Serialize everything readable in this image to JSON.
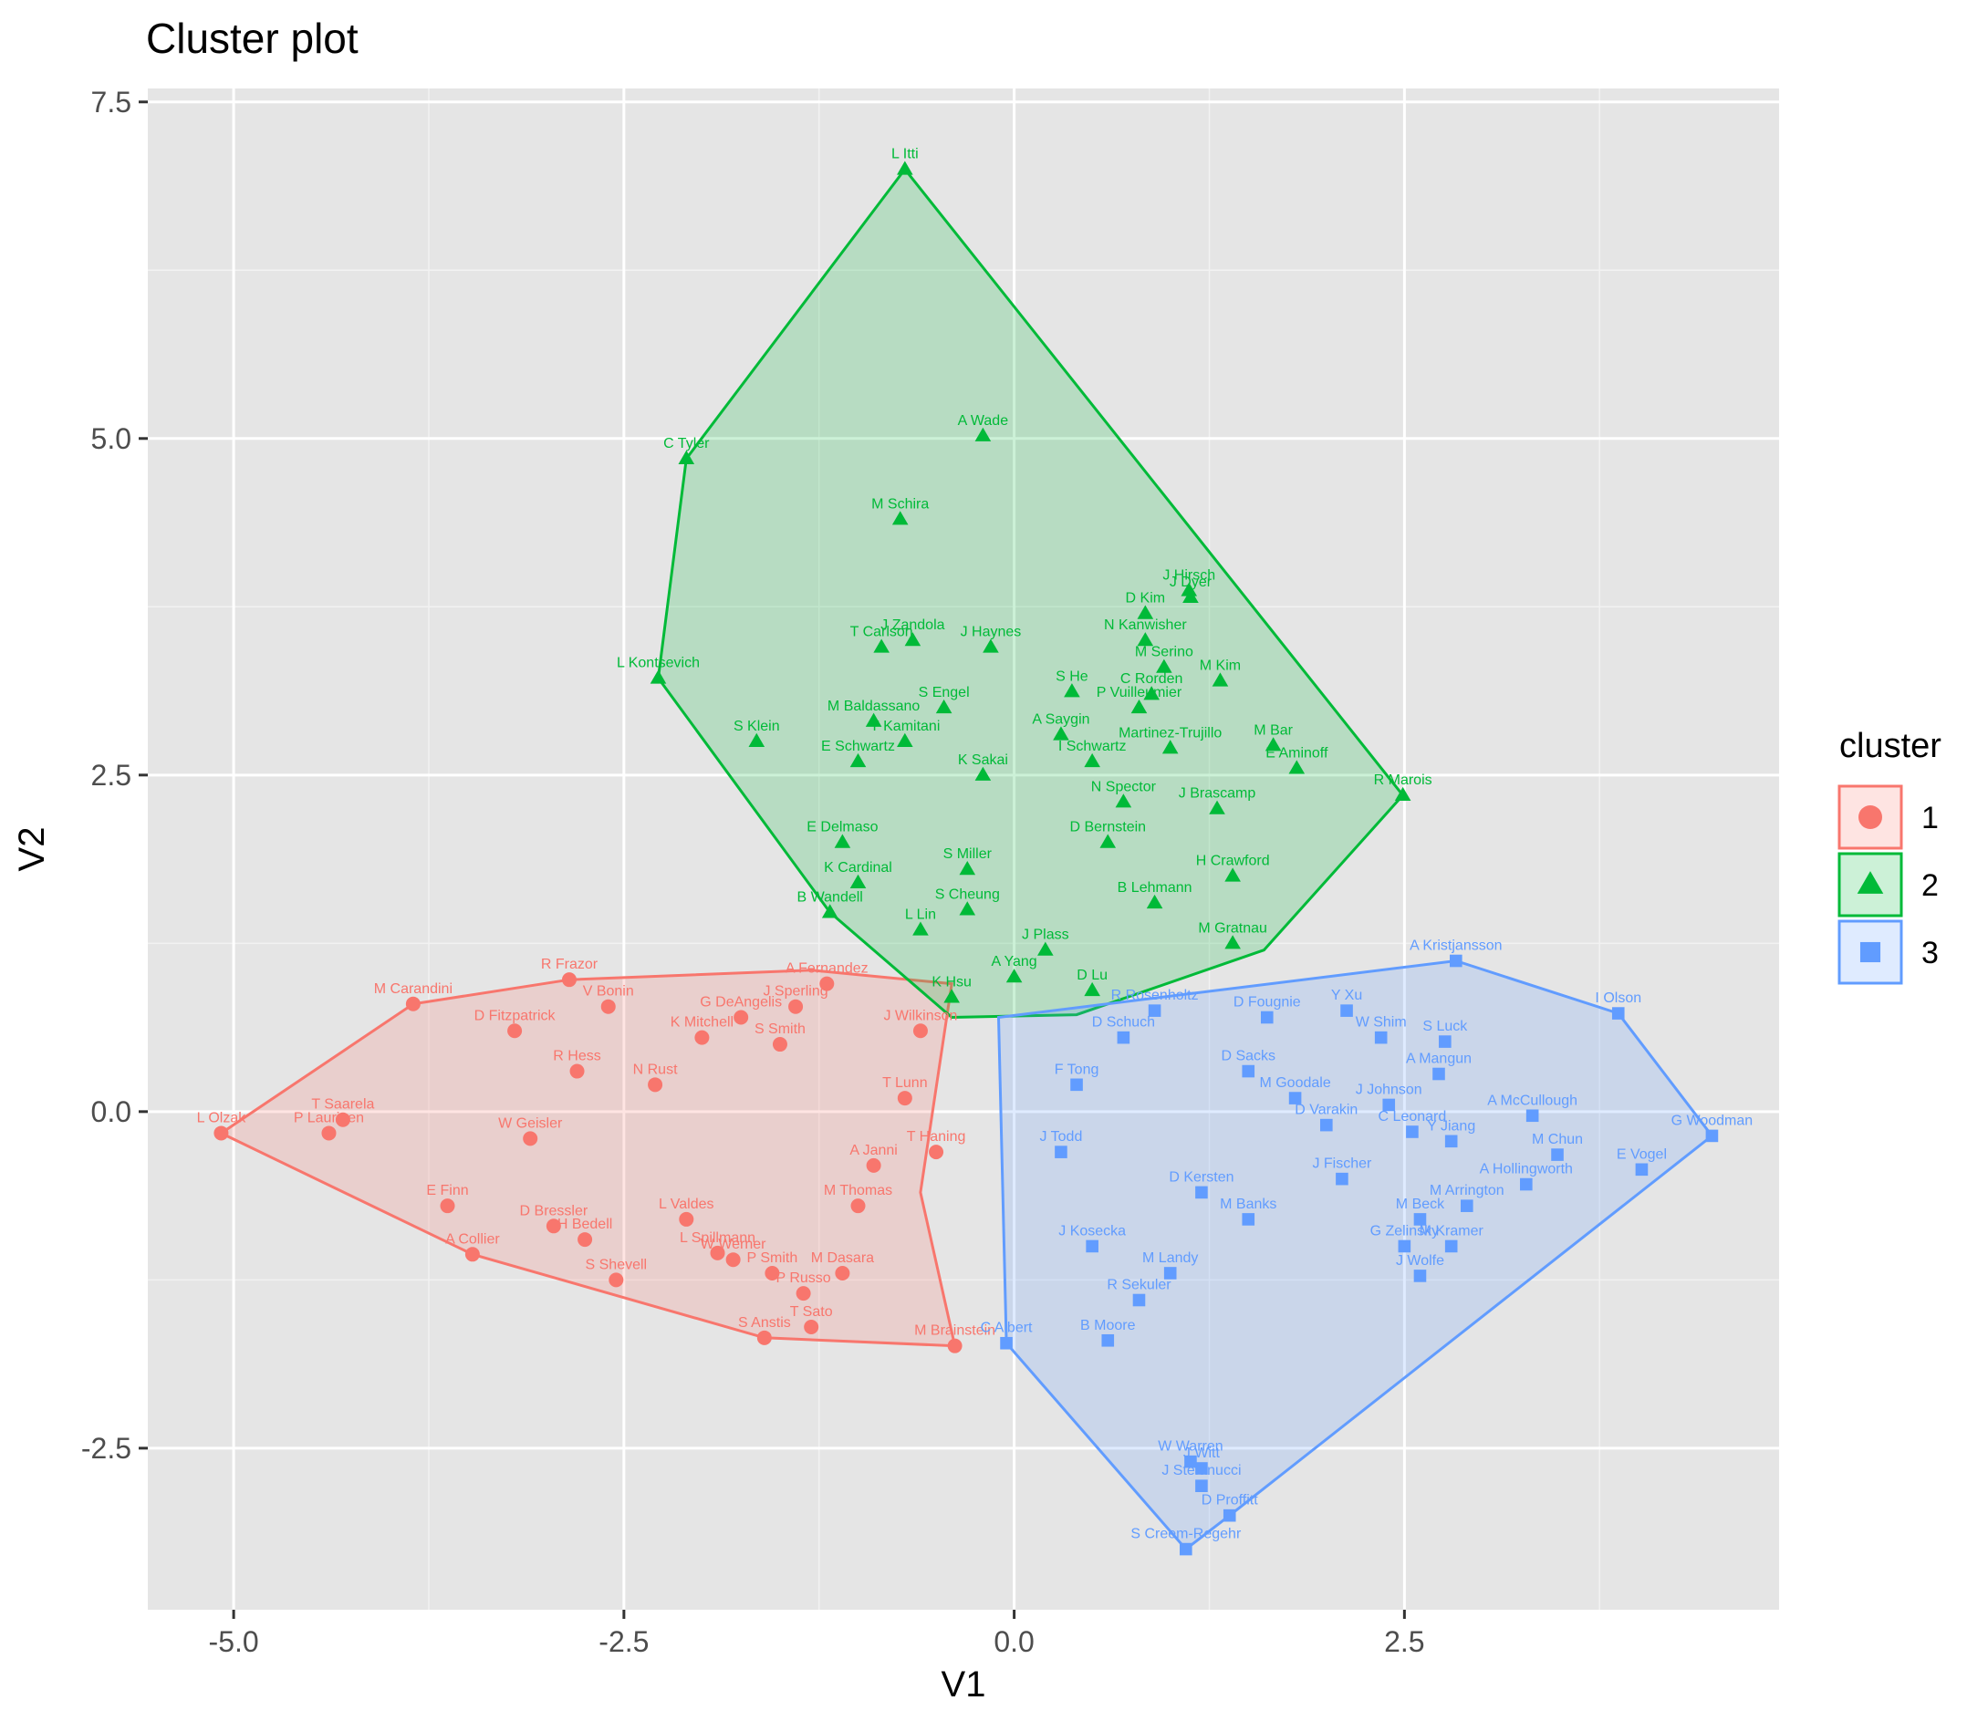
{
  "chart_data": {
    "type": "scatter",
    "title": "Cluster plot",
    "xlabel": "V1",
    "ylabel": "V2",
    "xlim": [
      -5.55,
      4.9
    ],
    "ylim": [
      -3.7,
      7.6
    ],
    "x_ticks": [
      -5.0,
      -2.5,
      0.0,
      2.5
    ],
    "x_tick_labels": [
      "-5.0",
      "-2.5",
      "0.0",
      "2.5"
    ],
    "y_ticks": [
      -2.5,
      0.0,
      2.5,
      5.0,
      7.5
    ],
    "y_tick_labels": [
      "-2.5",
      "0.0",
      "2.5",
      "5.0",
      "7.5"
    ],
    "grid": true,
    "panel_background": "#E5E5E5",
    "legend": {
      "title": "cluster",
      "position": "right",
      "entries": [
        {
          "label": "1",
          "shape": "circle",
          "color": "#F8766D"
        },
        {
          "label": "2",
          "shape": "triangle",
          "color": "#00BA38"
        },
        {
          "label": "3",
          "shape": "square",
          "color": "#619CFF"
        }
      ]
    },
    "clusters": [
      {
        "name": "1",
        "color": "#F8766D",
        "shape": "circle",
        "hull": [
          [
            -5.08,
            -0.16
          ],
          [
            -3.85,
            0.8
          ],
          [
            -2.85,
            0.98
          ],
          [
            -1.3,
            1.05
          ],
          [
            -0.4,
            0.95
          ],
          [
            -0.6,
            -0.6
          ],
          [
            -0.38,
            -1.74
          ],
          [
            -1.6,
            -1.68
          ],
          [
            -3.47,
            -1.06
          ]
        ],
        "points": [
          {
            "x": -5.08,
            "y": -0.16,
            "label": "L Olzak"
          },
          {
            "x": -4.39,
            "y": -0.16,
            "label": "P Laurinen"
          },
          {
            "x": -4.3,
            "y": -0.06,
            "label": "T Saarela"
          },
          {
            "x": -3.85,
            "y": 0.8,
            "label": "M Carandini"
          },
          {
            "x": -2.85,
            "y": 0.98,
            "label": "R Frazor"
          },
          {
            "x": -3.47,
            "y": -1.06,
            "label": "A Collier"
          },
          {
            "x": -3.63,
            "y": -0.7,
            "label": "E Finn"
          },
          {
            "x": -2.95,
            "y": -0.85,
            "label": "D Bressler"
          },
          {
            "x": -2.55,
            "y": -1.25,
            "label": "S Shevell"
          },
          {
            "x": -1.6,
            "y": -1.68,
            "label": "S Anstis"
          },
          {
            "x": -1.3,
            "y": -1.6,
            "label": "T Sato"
          },
          {
            "x": -0.38,
            "y": -1.74,
            "label": "M Brainstein"
          },
          {
            "x": -2.6,
            "y": 0.78,
            "label": "V Bonin"
          },
          {
            "x": -3.2,
            "y": 0.6,
            "label": "D Fitzpatrick"
          },
          {
            "x": -3.1,
            "y": -0.2,
            "label": "W Geisler"
          },
          {
            "x": -2.8,
            "y": 0.3,
            "label": "R Hess"
          },
          {
            "x": -2.75,
            "y": -0.95,
            "label": "H Bedell"
          },
          {
            "x": -2.3,
            "y": 0.2,
            "label": "N Rust"
          },
          {
            "x": -2.0,
            "y": 0.55,
            "label": "K Mitchell"
          },
          {
            "x": -1.75,
            "y": 0.7,
            "label": "G DeAngelis"
          },
          {
            "x": -1.4,
            "y": 0.78,
            "label": "J Sperling"
          },
          {
            "x": -1.5,
            "y": 0.5,
            "label": "S Smith"
          },
          {
            "x": -1.2,
            "y": 0.95,
            "label": "A Fernandez"
          },
          {
            "x": -2.1,
            "y": -0.8,
            "label": "L Valdes"
          },
          {
            "x": -1.9,
            "y": -1.05,
            "label": "L Spillmann"
          },
          {
            "x": -1.55,
            "y": -1.2,
            "label": "P Smith"
          },
          {
            "x": -1.35,
            "y": -1.35,
            "label": "P Russo"
          },
          {
            "x": -1.1,
            "y": -1.2,
            "label": "M Dasara"
          },
          {
            "x": -1.8,
            "y": -1.1,
            "label": "W Werner"
          },
          {
            "x": -0.9,
            "y": -0.4,
            "label": "A Janni"
          },
          {
            "x": -0.7,
            "y": 0.1,
            "label": "T Lunn"
          },
          {
            "x": -0.5,
            "y": -0.3,
            "label": "T Haning"
          },
          {
            "x": -1.0,
            "y": -0.7,
            "label": "M Thomas"
          },
          {
            "x": -0.6,
            "y": 0.6,
            "label": "J Wilkinson"
          }
        ]
      },
      {
        "name": "2",
        "color": "#00BA38",
        "shape": "triangle",
        "hull": [
          [
            -0.7,
            7.0
          ],
          [
            -2.1,
            4.85
          ],
          [
            -2.28,
            3.22
          ],
          [
            -1.18,
            1.48
          ],
          [
            -0.4,
            0.7
          ],
          [
            0.4,
            0.72
          ],
          [
            1.6,
            1.2
          ],
          [
            2.49,
            2.35
          ]
        ],
        "points": [
          {
            "x": -0.7,
            "y": 7.0,
            "label": "L Itti"
          },
          {
            "x": -2.1,
            "y": 4.85,
            "label": "C Tyler"
          },
          {
            "x": -0.2,
            "y": 5.02,
            "label": "A Wade"
          },
          {
            "x": -0.73,
            "y": 4.4,
            "label": "M Schira"
          },
          {
            "x": -2.28,
            "y": 3.22,
            "label": "L Kontsevich"
          },
          {
            "x": -1.65,
            "y": 2.75,
            "label": "S Klein"
          },
          {
            "x": -1.18,
            "y": 1.48,
            "label": "B Wandell"
          },
          {
            "x": -1.0,
            "y": 1.7,
            "label": "K Cardinal"
          },
          {
            "x": 2.49,
            "y": 2.35,
            "label": "R Marois"
          },
          {
            "x": 1.12,
            "y": 3.87,
            "label": "J Hirsch"
          },
          {
            "x": 1.13,
            "y": 3.82,
            "label": "J Dyer"
          },
          {
            "x": 0.84,
            "y": 3.7,
            "label": "D Kim"
          },
          {
            "x": 0.84,
            "y": 3.5,
            "label": "N Kanwisher"
          },
          {
            "x": 1.32,
            "y": 3.2,
            "label": "M Kim"
          },
          {
            "x": 0.96,
            "y": 3.3,
            "label": "M Serino"
          },
          {
            "x": 0.88,
            "y": 3.1,
            "label": "C Rorden"
          },
          {
            "x": 0.37,
            "y": 3.12,
            "label": "S He"
          },
          {
            "x": 1.66,
            "y": 2.72,
            "label": "M Bar"
          },
          {
            "x": 1.81,
            "y": 2.55,
            "label": "E Aminoff"
          },
          {
            "x": 0.8,
            "y": 3.0,
            "label": "P Vuilleumier"
          },
          {
            "x": 0.3,
            "y": 2.8,
            "label": "A Saygin"
          },
          {
            "x": 0.5,
            "y": 2.6,
            "label": "I Schwartz"
          },
          {
            "x": 1.0,
            "y": 2.7,
            "label": "Martinez-Trujillo"
          },
          {
            "x": -0.15,
            "y": 3.45,
            "label": "J Haynes"
          },
          {
            "x": -0.65,
            "y": 3.5,
            "label": "J Zandola"
          },
          {
            "x": -0.85,
            "y": 3.45,
            "label": "T Carlson"
          },
          {
            "x": -0.45,
            "y": 3.0,
            "label": "S Engel"
          },
          {
            "x": -0.9,
            "y": 2.9,
            "label": "M Baldassano"
          },
          {
            "x": -0.7,
            "y": 2.75,
            "label": "Y Kamitani"
          },
          {
            "x": -1.0,
            "y": 2.6,
            "label": "E Schwartz"
          },
          {
            "x": -0.2,
            "y": 2.5,
            "label": "K Sakai"
          },
          {
            "x": 0.7,
            "y": 2.3,
            "label": "N Spector"
          },
          {
            "x": 1.3,
            "y": 2.25,
            "label": "J Brascamp"
          },
          {
            "x": 0.6,
            "y": 2.0,
            "label": "D Bernstein"
          },
          {
            "x": 1.4,
            "y": 1.75,
            "label": "H Crawford"
          },
          {
            "x": 0.9,
            "y": 1.55,
            "label": "B Lehmann"
          },
          {
            "x": 1.4,
            "y": 1.25,
            "label": "M Gratnau"
          },
          {
            "x": -0.3,
            "y": 1.8,
            "label": "S Miller"
          },
          {
            "x": -0.3,
            "y": 1.5,
            "label": "S Cheung"
          },
          {
            "x": -0.6,
            "y": 1.35,
            "label": "L Lin"
          },
          {
            "x": -1.1,
            "y": 2.0,
            "label": "E Delmaso"
          },
          {
            "x": 0.2,
            "y": 1.2,
            "label": "J Plass"
          },
          {
            "x": 0.0,
            "y": 1.0,
            "label": "A Yang"
          },
          {
            "x": -0.4,
            "y": 0.85,
            "label": "K Hsu"
          },
          {
            "x": 0.5,
            "y": 0.9,
            "label": "D Lu"
          }
        ]
      },
      {
        "name": "3",
        "color": "#619CFF",
        "shape": "square",
        "hull": [
          [
            -0.1,
            0.7
          ],
          [
            2.83,
            1.12
          ],
          [
            3.87,
            0.73
          ],
          [
            4.47,
            -0.18
          ],
          [
            1.38,
            -3.0
          ],
          [
            1.1,
            -3.25
          ],
          [
            -0.05,
            -1.72
          ]
        ],
        "points": [
          {
            "x": 2.83,
            "y": 1.12,
            "label": "A Kristjansson"
          },
          {
            "x": 3.87,
            "y": 0.73,
            "label": "I Olson"
          },
          {
            "x": 4.47,
            "y": -0.18,
            "label": "G Woodman"
          },
          {
            "x": 4.02,
            "y": -0.43,
            "label": "E Vogel"
          },
          {
            "x": 2.76,
            "y": 0.52,
            "label": "S Luck"
          },
          {
            "x": 2.72,
            "y": 0.28,
            "label": "A Mangun"
          },
          {
            "x": 3.32,
            "y": -0.03,
            "label": "A McCullough"
          },
          {
            "x": 3.48,
            "y": -0.32,
            "label": "M Chun"
          },
          {
            "x": 2.8,
            "y": -0.22,
            "label": "Y Jiang"
          },
          {
            "x": 3.28,
            "y": -0.54,
            "label": "A Hollingworth"
          },
          {
            "x": 2.55,
            "y": -0.15,
            "label": "C Leonard"
          },
          {
            "x": 2.4,
            "y": 0.05,
            "label": "J Johnson"
          },
          {
            "x": 2.13,
            "y": 0.75,
            "label": "Y Xu"
          },
          {
            "x": 2.35,
            "y": 0.55,
            "label": "W Shim"
          },
          {
            "x": 1.62,
            "y": 0.7,
            "label": "D Fougnie"
          },
          {
            "x": 1.5,
            "y": 0.3,
            "label": "D Sacks"
          },
          {
            "x": 1.8,
            "y": 0.1,
            "label": "M Goodale"
          },
          {
            "x": 2.0,
            "y": -0.1,
            "label": "D Varakin"
          },
          {
            "x": 2.1,
            "y": -0.5,
            "label": "J Fischer"
          },
          {
            "x": 2.6,
            "y": -0.8,
            "label": "M Beck"
          },
          {
            "x": 2.5,
            "y": -1.0,
            "label": "G Zelinsky"
          },
          {
            "x": 2.6,
            "y": -1.22,
            "label": "J Wolfe"
          },
          {
            "x": 2.8,
            "y": -1.0,
            "label": "M Kramer"
          },
          {
            "x": 2.9,
            "y": -0.7,
            "label": "M Arrington"
          },
          {
            "x": 1.13,
            "y": -2.6,
            "label": "W Warren"
          },
          {
            "x": 1.2,
            "y": -2.65,
            "label": "J Witt"
          },
          {
            "x": 1.2,
            "y": -2.78,
            "label": "J Stefanucci"
          },
          {
            "x": 1.38,
            "y": -3.0,
            "label": "D Proffitt"
          },
          {
            "x": 1.1,
            "y": -3.25,
            "label": "S Creem-Regehr"
          },
          {
            "x": 0.7,
            "y": 0.55,
            "label": "D Schuch"
          },
          {
            "x": 0.9,
            "y": 0.75,
            "label": "R Rosenholtz"
          },
          {
            "x": 0.5,
            "y": -1.0,
            "label": "J Kosecka"
          },
          {
            "x": 0.6,
            "y": -1.7,
            "label": "B Moore"
          },
          {
            "x": -0.05,
            "y": -1.72,
            "label": "C Albert"
          },
          {
            "x": 0.8,
            "y": -1.4,
            "label": "R Sekuler"
          },
          {
            "x": 1.0,
            "y": -1.2,
            "label": "M Landy"
          },
          {
            "x": 1.2,
            "y": -0.6,
            "label": "D Kersten"
          },
          {
            "x": 1.5,
            "y": -0.8,
            "label": "M Banks"
          },
          {
            "x": 0.3,
            "y": -0.3,
            "label": "J Todd"
          },
          {
            "x": 0.4,
            "y": 0.2,
            "label": "F Tong"
          }
        ]
      }
    ]
  }
}
